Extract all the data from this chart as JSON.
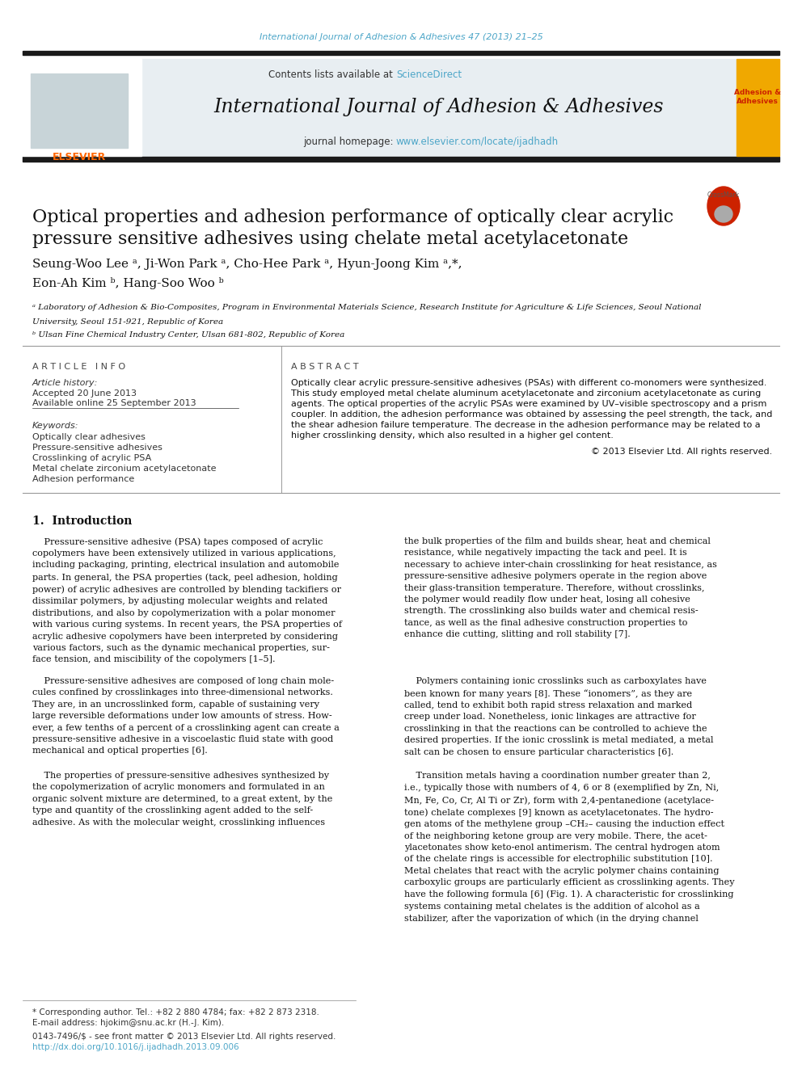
{
  "page_bg": "#ffffff",
  "header_citation": "International Journal of Adhesion & Adhesives 47 (2013) 21–25",
  "header_citation_color": "#4da6c8",
  "journal_header_bg": "#e8eef2",
  "journal_name": "International Journal of Adhesion & Adhesives",
  "contents_text": "Contents lists available at ",
  "sciencedirect_text": "ScienceDirect",
  "sciencedirect_color": "#4da6c8",
  "journal_homepage_text": "journal homepage: ",
  "journal_url": "www.elsevier.com/locate/ijadhadh",
  "journal_url_color": "#4da6c8",
  "elsevier_color": "#ff6600",
  "thick_bar_color": "#1a1a1a",
  "article_title_line1": "Optical properties and adhesion performance of optically clear acrylic",
  "article_title_line2": "pressure sensitive adhesives using chelate metal acetylacetonate",
  "authors_line1": "Seung-Woo Lee ᵃ, Ji-Won Park ᵃ, Cho-Hee Park ᵃ, Hyun-Joong Kim ᵃ,*,",
  "authors_line2": "Eon-Ah Kim ᵇ, Hang-Soo Woo ᵇ",
  "affil_a": "ᵃ Laboratory of Adhesion & Bio-Composites, Program in Environmental Materials Science, Research Institute for Agriculture & Life Sciences, Seoul National",
  "affil_a2": "University, Seoul 151-921, Republic of Korea",
  "affil_b": "ᵇ Ulsan Fine Chemical Industry Center, Ulsan 681-802, Republic of Korea",
  "article_info_header": "A R T I C L E   I N F O",
  "abstract_header": "A B S T R A C T",
  "article_history_header": "Article history:",
  "article_history_lines": [
    "Accepted 20 June 2013",
    "Available online 25 September 2013"
  ],
  "keywords_header": "Keywords:",
  "keywords": [
    "Optically clear adhesives",
    "Pressure-sensitive adhesives",
    "Crosslinking of acrylic PSA",
    "Metal chelate zirconium acetylacetonate",
    "Adhesion performance"
  ],
  "abstract_lines": [
    "Optically clear acrylic pressure-sensitive adhesives (PSAs) with different co-monomers were synthesized.",
    "This study employed metal chelate aluminum acetylacetonate and zirconium acetylacetonate as curing",
    "agents. The optical properties of the acrylic PSAs were examined by UV–visible spectroscopy and a prism",
    "coupler. In addition, the adhesion performance was obtained by assessing the peel strength, the tack, and",
    "the shear adhesion failure temperature. The decrease in the adhesion performance may be related to a",
    "higher crosslinking density, which also resulted in a higher gel content."
  ],
  "copyright_text": "© 2013 Elsevier Ltd. All rights reserved.",
  "intro_header": "1.  Introduction",
  "col1_blocks": [
    "    Pressure-sensitive adhesive (PSA) tapes composed of acrylic\ncopolymers have been extensively utilized in various applications,\nincluding packaging, printing, electrical insulation and automobile\nparts. In general, the PSA properties (tack, peel adhesion, holding\npower) of acrylic adhesives are controlled by blending tackifiers or\ndissimilar polymers, by adjusting molecular weights and related\ndistributions, and also by copolymerization with a polar monomer\nwith various curing systems. In recent years, the PSA properties of\nacrylic adhesive copolymers have been interpreted by considering\nvarious factors, such as the dynamic mechanical properties, sur-\nface tension, and miscibility of the copolymers [1–5].",
    "    Pressure-sensitive adhesives are composed of long chain mole-\ncules confined by crosslinkages into three-dimensional networks.\nThey are, in an uncrosslinked form, capable of sustaining very\nlarge reversible deformations under low amounts of stress. How-\never, a few tenths of a percent of a crosslinking agent can create a\npressure-sensitive adhesive in a viscoelastic fluid state with good\nmechanical and optical properties [6].",
    "    The properties of pressure-sensitive adhesives synthesized by\nthe copolymerization of acrylic monomers and formulated in an\norganic solvent mixture are determined, to a great extent, by the\ntype and quantity of the crosslinking agent added to the self-\nadhesive. As with the molecular weight, crosslinking influences"
  ],
  "col2_blocks": [
    "the bulk properties of the film and builds shear, heat and chemical\nresistance, while negatively impacting the tack and peel. It is\nnecessary to achieve inter-chain crosslinking for heat resistance, as\npressure-sensitive adhesive polymers operate in the region above\ntheir glass-transition temperature. Therefore, without crosslinks,\nthe polymer would readily flow under heat, losing all cohesive\nstrength. The crosslinking also builds water and chemical resis-\ntance, as well as the final adhesive construction properties to\nenhance die cutting, slitting and roll stability [7].",
    "    Polymers containing ionic crosslinks such as carboxylates have\nbeen known for many years [8]. These “ionomers”, as they are\ncalled, tend to exhibit both rapid stress relaxation and marked\ncreep under load. Nonetheless, ionic linkages are attractive for\ncrosslinking in that the reactions can be controlled to achieve the\ndesired properties. If the ionic crosslink is metal mediated, a metal\nsalt can be chosen to ensure particular characteristics [6].",
    "    Transition metals having a coordination number greater than 2,\ni.e., typically those with numbers of 4, 6 or 8 (exemplified by Zn, Ni,\nMn, Fe, Co, Cr, Al Ti or Zr), form with 2,4-pentanedione (acetylace-\ntone) chelate complexes [9] known as acetylacetonates. The hydro-\ngen atoms of the methylene group –CH₂– causing the induction effect\nof the neighboring ketone group are very mobile. There, the acet-\nylacetonates show keto-enol antimerism. The central hydrogen atom\nof the chelate rings is accessible for electrophilic substitution [10].\nMetal chelates that react with the acrylic polymer chains containing\ncarboxylic groups are particularly efficient as crosslinking agents. They\nhave the following formula [6] (Fig. 1). A characteristic for crosslinking\nsystems containing metal chelates is the addition of alcohol as a\nstabilizer, after the vaporization of which (in the drying channel"
  ],
  "footer_line1": "* Corresponding author. Tel.: +82 2 880 4784; fax: +82 2 873 2318.",
  "footer_line2": "E-mail address: hjokim@snu.ac.kr (H.-J. Kim).",
  "footer_line3": "0143-7496/$ - see front matter © 2013 Elsevier Ltd. All rights reserved.",
  "footer_url": "http://dx.doi.org/10.1016/j.ijadhadh.2013.09.006"
}
